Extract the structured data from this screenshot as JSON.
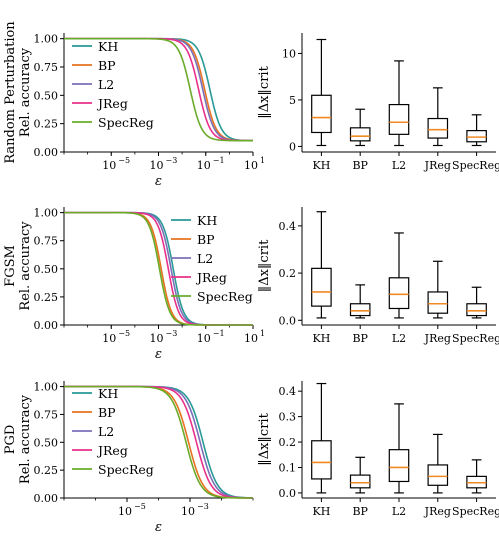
{
  "colors": {
    "KH": "#2a9a97",
    "BP": "#e5731f",
    "L2": "#7b6fb8",
    "JReg": "#e8318a",
    "SpecReg": "#6aab2a",
    "median": "#f08a24",
    "box": "#000000"
  },
  "chart_data": [
    {
      "type": "line",
      "row_title": "Random Perturbation",
      "ylabel": "Rel. accuracy",
      "xlabel": "ε",
      "xscale": "log",
      "xlim": [
        1e-07,
        10
      ],
      "ylim": [
        0,
        1.05
      ],
      "xticks": [
        1e-05,
        0.001,
        0.1,
        10
      ],
      "xtick_labels": [
        "10",
        "10",
        "10",
        "10"
      ],
      "xtick_exponents": [
        "−5",
        "−3",
        "−1",
        "1"
      ],
      "yticks": [
        0.0,
        0.25,
        0.5,
        0.75,
        1.0
      ],
      "ytick_labels": [
        "0.00",
        "0.25",
        "0.50",
        "0.75",
        "1.00"
      ],
      "legend": {
        "placement": "upper-right",
        "entries": [
          "KH",
          "BP",
          "L2",
          "JReg",
          "SpecReg"
        ]
      },
      "series": [
        {
          "name": "KH",
          "midpoint_eps": 0.15,
          "slope": 1.8,
          "floor": 0.1
        },
        {
          "name": "BP",
          "midpoint_eps": 0.09,
          "slope": 1.8,
          "floor": 0.1
        },
        {
          "name": "L2",
          "midpoint_eps": 0.075,
          "slope": 1.8,
          "floor": 0.1
        },
        {
          "name": "JReg",
          "midpoint_eps": 0.05,
          "slope": 1.8,
          "floor": 0.1
        },
        {
          "name": "SpecReg",
          "midpoint_eps": 0.022,
          "slope": 1.8,
          "floor": 0.1
        }
      ]
    },
    {
      "type": "box",
      "ylabel": "‖Δx‖crit",
      "categories": [
        "KH",
        "BP",
        "L2",
        "JReg",
        "SpecReg"
      ],
      "ylim": [
        -0.6,
        12.2
      ],
      "yticks": [
        0,
        5,
        10
      ],
      "ytick_labels": [
        "0",
        "5",
        "10"
      ],
      "boxes": [
        {
          "whislo": 0.1,
          "q1": 1.5,
          "med": 3.1,
          "q3": 5.5,
          "whishi": 11.5
        },
        {
          "whislo": 0.1,
          "q1": 0.6,
          "med": 1.1,
          "q3": 2.0,
          "whishi": 4.0
        },
        {
          "whislo": 0.1,
          "q1": 1.3,
          "med": 2.6,
          "q3": 4.5,
          "whishi": 9.2
        },
        {
          "whislo": 0.1,
          "q1": 0.9,
          "med": 1.8,
          "q3": 3.0,
          "whishi": 6.3
        },
        {
          "whislo": 0.1,
          "q1": 0.5,
          "med": 1.0,
          "q3": 1.7,
          "whishi": 3.4
        }
      ]
    },
    {
      "type": "line",
      "row_title": "FGSM",
      "ylabel": "Rel. accuracy",
      "xlabel": "ε",
      "xscale": "log",
      "xlim": [
        1e-07,
        10
      ],
      "ylim": [
        0,
        1.05
      ],
      "xticks": [
        1e-05,
        0.001,
        0.1,
        10
      ],
      "xtick_labels": [
        "10",
        "10",
        "10",
        "10"
      ],
      "xtick_exponents": [
        "−5",
        "−3",
        "−1",
        "1"
      ],
      "yticks": [
        0.0,
        0.25,
        0.5,
        0.75,
        1.0
      ],
      "ytick_labels": [
        "0.00",
        "0.25",
        "0.50",
        "0.75",
        "1.00"
      ],
      "legend": {
        "placement": "upper-right",
        "entries": [
          "KH",
          "BP",
          "L2",
          "JReg",
          "SpecReg"
        ]
      },
      "series": [
        {
          "name": "KH",
          "midpoint_eps": 0.0042,
          "slope": 2.0,
          "floor": 0.0
        },
        {
          "name": "BP",
          "midpoint_eps": 0.0013,
          "slope": 2.0,
          "floor": 0.0
        },
        {
          "name": "L2",
          "midpoint_eps": 0.0034,
          "slope": 2.0,
          "floor": 0.0
        },
        {
          "name": "JReg",
          "midpoint_eps": 0.0026,
          "slope": 2.0,
          "floor": 0.0
        },
        {
          "name": "SpecReg",
          "midpoint_eps": 0.0011,
          "slope": 2.0,
          "floor": 0.0
        }
      ]
    },
    {
      "type": "box",
      "ylabel": "‖Δx‖crit",
      "categories": [
        "KH",
        "BP",
        "L2",
        "JReg",
        "SpecReg"
      ],
      "ylim": [
        -0.02,
        0.48
      ],
      "yticks": [
        0.0,
        0.2,
        0.4
      ],
      "ytick_labels": [
        "0.0",
        "0.2",
        "0.4"
      ],
      "boxes": [
        {
          "whislo": 0.01,
          "q1": 0.06,
          "med": 0.12,
          "q3": 0.22,
          "whishi": 0.46
        },
        {
          "whislo": 0.01,
          "q1": 0.02,
          "med": 0.04,
          "q3": 0.07,
          "whishi": 0.15
        },
        {
          "whislo": 0.01,
          "q1": 0.05,
          "med": 0.11,
          "q3": 0.18,
          "whishi": 0.37
        },
        {
          "whislo": 0.01,
          "q1": 0.03,
          "med": 0.07,
          "q3": 0.12,
          "whishi": 0.25
        },
        {
          "whislo": 0.01,
          "q1": 0.02,
          "med": 0.04,
          "q3": 0.07,
          "whishi": 0.14
        }
      ]
    },
    {
      "type": "line",
      "row_title": "PGD",
      "ylabel": "Rel. accuracy",
      "xlabel": "ε",
      "xscale": "log",
      "xlim": [
        1e-07,
        0.1
      ],
      "ylim": [
        0,
        1.05
      ],
      "xticks": [
        1e-05,
        0.001
      ],
      "xtick_labels": [
        "10",
        "10"
      ],
      "xtick_exponents": [
        "−5",
        "−3"
      ],
      "yticks": [
        0.0,
        0.25,
        0.5,
        0.75,
        1.0
      ],
      "ytick_labels": [
        "0.00",
        "0.25",
        "0.50",
        "0.75",
        "1.00"
      ],
      "legend": {
        "placement": "upper-right",
        "entries": [
          "KH",
          "BP",
          "L2",
          "JReg",
          "SpecReg"
        ]
      },
      "series": [
        {
          "name": "KH",
          "midpoint_eps": 0.0026,
          "slope": 1.9,
          "floor": 0.0
        },
        {
          "name": "BP",
          "midpoint_eps": 0.0009,
          "slope": 1.9,
          "floor": 0.0
        },
        {
          "name": "L2",
          "midpoint_eps": 0.0021,
          "slope": 1.9,
          "floor": 0.0
        },
        {
          "name": "JReg",
          "midpoint_eps": 0.0016,
          "slope": 1.9,
          "floor": 0.0
        },
        {
          "name": "SpecReg",
          "midpoint_eps": 0.00075,
          "slope": 1.9,
          "floor": 0.0
        }
      ]
    },
    {
      "type": "box",
      "ylabel": "‖Δx‖crit",
      "categories": [
        "KH",
        "BP",
        "L2",
        "JReg",
        "SpecReg"
      ],
      "ylim": [
        -0.02,
        0.44
      ],
      "yticks": [
        0.0,
        0.1,
        0.2,
        0.3,
        0.4
      ],
      "ytick_labels": [
        "0.0",
        "0.1",
        "0.2",
        "0.3",
        "0.4"
      ],
      "boxes": [
        {
          "whislo": 0.0,
          "q1": 0.055,
          "med": 0.12,
          "q3": 0.205,
          "whishi": 0.43
        },
        {
          "whislo": 0.0,
          "q1": 0.02,
          "med": 0.04,
          "q3": 0.07,
          "whishi": 0.14
        },
        {
          "whislo": 0.0,
          "q1": 0.045,
          "med": 0.1,
          "q3": 0.17,
          "whishi": 0.35
        },
        {
          "whislo": 0.0,
          "q1": 0.03,
          "med": 0.065,
          "q3": 0.11,
          "whishi": 0.23
        },
        {
          "whislo": 0.0,
          "q1": 0.02,
          "med": 0.04,
          "q3": 0.065,
          "whishi": 0.13
        }
      ]
    }
  ]
}
